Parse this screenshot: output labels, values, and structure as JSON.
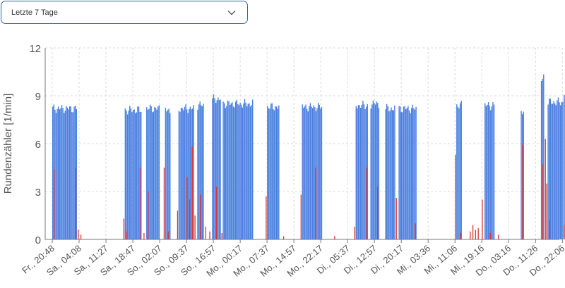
{
  "filter": {
    "selected_label": "Letzte 7 Tage",
    "icon": "chevron-down-icon"
  },
  "chart_data": {
    "type": "bar",
    "title": "",
    "ylabel": "Rundenzähler [1/min]",
    "xlabel": "",
    "ylim": [
      0,
      12
    ],
    "yticks": [
      0,
      3,
      6,
      9,
      12
    ],
    "grid": true,
    "x_tick_labels": [
      "Fr., 20:48",
      "Sa., 04:08",
      "Sa., 11:27",
      "Sa., 18:47",
      "So., 02:07",
      "So., 09:37",
      "So., 16:57",
      "Mo., 00:17",
      "Mo., 07:37",
      "Mo., 14:57",
      "Mo., 22:17",
      "Di., 05:37",
      "Di., 12:57",
      "Di., 20:17",
      "Mi., 03:36",
      "Mi., 11:06",
      "Mi., 19:16",
      "Do., 03:16",
      "Do., 11:26",
      "Do., 22:06"
    ],
    "series": [
      {
        "color": "#4a7fe0",
        "segments": [
          {
            "start": 0.0,
            "end": 0.9,
            "level": 8.2
          },
          {
            "start": 2.7,
            "end": 3.3,
            "level": 8.1
          },
          {
            "start": 3.5,
            "end": 4.0,
            "level": 8.2
          },
          {
            "start": 4.2,
            "end": 4.4,
            "level": 8.1
          },
          {
            "start": 4.7,
            "end": 5.25,
            "level": 8.2
          },
          {
            "start": 5.4,
            "end": 5.65,
            "level": 8.4
          },
          {
            "start": 5.95,
            "end": 6.25,
            "level": 8.8
          },
          {
            "start": 6.35,
            "end": 7.45,
            "level": 8.5
          },
          {
            "start": 8.0,
            "end": 8.45,
            "level": 8.3
          },
          {
            "start": 9.3,
            "end": 10.05,
            "level": 8.3
          },
          {
            "start": 11.3,
            "end": 11.75,
            "level": 8.4
          },
          {
            "start": 11.85,
            "end": 12.15,
            "level": 8.5
          },
          {
            "start": 12.4,
            "end": 12.75,
            "level": 8.2
          },
          {
            "start": 12.9,
            "end": 13.55,
            "level": 8.2
          },
          {
            "start": 15.05,
            "end": 15.25,
            "level": 8.4
          },
          {
            "start": 16.1,
            "end": 16.45,
            "level": 8.4
          },
          {
            "start": 17.45,
            "end": 17.55,
            "level": 8.0
          },
          {
            "start": 18.2,
            "end": 18.3,
            "level": 10.2
          },
          {
            "start": 18.45,
            "end": 19.0,
            "level": 8.6
          },
          {
            "start": 19.05,
            "end": 19.1,
            "level": 8.9
          }
        ]
      },
      {
        "color": "#e0332b",
        "spikes": [
          {
            "x": 0.05,
            "y": 4.4
          },
          {
            "x": 0.85,
            "y": 4.5
          },
          {
            "x": 0.95,
            "y": 0.6
          },
          {
            "x": 1.05,
            "y": 0.3
          },
          {
            "x": 2.65,
            "y": 1.3
          },
          {
            "x": 2.75,
            "y": 0.5
          },
          {
            "x": 3.25,
            "y": 4.5
          },
          {
            "x": 3.4,
            "y": 0.4
          },
          {
            "x": 3.55,
            "y": 3.0
          },
          {
            "x": 4.15,
            "y": 4.5
          },
          {
            "x": 4.3,
            "y": 0.5
          },
          {
            "x": 4.65,
            "y": 1.8
          },
          {
            "x": 5.0,
            "y": 3.9
          },
          {
            "x": 5.1,
            "y": 2.5
          },
          {
            "x": 5.2,
            "y": 5.8
          },
          {
            "x": 5.3,
            "y": 1.5
          },
          {
            "x": 5.5,
            "y": 2.8
          },
          {
            "x": 5.7,
            "y": 0.8
          },
          {
            "x": 5.85,
            "y": 0.5
          },
          {
            "x": 6.1,
            "y": 3.3
          },
          {
            "x": 6.3,
            "y": 0.4
          },
          {
            "x": 7.95,
            "y": 2.7
          },
          {
            "x": 8.6,
            "y": 0.2
          },
          {
            "x": 9.25,
            "y": 2.8
          },
          {
            "x": 9.8,
            "y": 4.5
          },
          {
            "x": 10.5,
            "y": 0.2
          },
          {
            "x": 11.25,
            "y": 0.8
          },
          {
            "x": 11.7,
            "y": 4.5
          },
          {
            "x": 12.1,
            "y": 3.3
          },
          {
            "x": 12.8,
            "y": 2.6
          },
          {
            "x": 13.5,
            "y": 1.0
          },
          {
            "x": 15.0,
            "y": 5.3
          },
          {
            "x": 15.2,
            "y": 0.4
          },
          {
            "x": 15.55,
            "y": 0.5
          },
          {
            "x": 15.65,
            "y": 0.9
          },
          {
            "x": 15.75,
            "y": 0.6
          },
          {
            "x": 15.85,
            "y": 0.7
          },
          {
            "x": 16.0,
            "y": 2.5
          },
          {
            "x": 16.3,
            "y": 0.4
          },
          {
            "x": 16.6,
            "y": 0.3
          },
          {
            "x": 17.5,
            "y": 5.9
          },
          {
            "x": 18.25,
            "y": 4.7
          },
          {
            "x": 18.35,
            "y": 6.3
          },
          {
            "x": 18.4,
            "y": 3.5
          },
          {
            "x": 18.5,
            "y": 1.2
          },
          {
            "x": 19.05,
            "y": 0.9
          }
        ]
      }
    ]
  }
}
